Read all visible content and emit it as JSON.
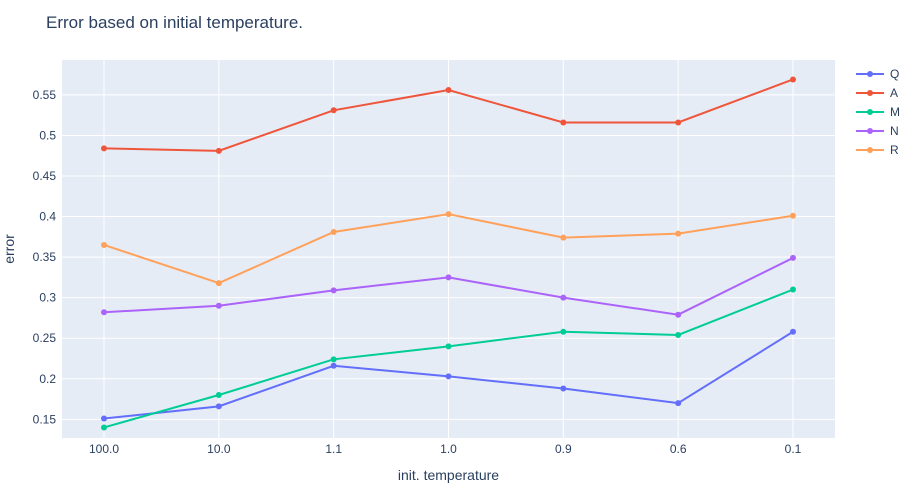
{
  "chart_data": {
    "type": "line",
    "title": "Error based on initial temperature.",
    "xlabel": "init. temperature",
    "ylabel": "error",
    "categories": [
      "100.0",
      "10.0",
      "1.1",
      "1.0",
      "0.9",
      "0.6",
      "0.1"
    ],
    "ylim": [
      0.127,
      0.593
    ],
    "yticks": [
      "0.15",
      "0.2",
      "0.25",
      "0.3",
      "0.35",
      "0.4",
      "0.45",
      "0.5",
      "0.55"
    ],
    "grid": true,
    "legend_position": "top-right",
    "series": [
      {
        "name": "Q",
        "color": "#636efa",
        "values": [
          0.151,
          0.166,
          0.216,
          0.203,
          0.188,
          0.17,
          0.258
        ]
      },
      {
        "name": "A",
        "color": "#ef553b",
        "values": [
          0.484,
          0.481,
          0.531,
          0.556,
          0.516,
          0.516,
          0.569
        ]
      },
      {
        "name": "M",
        "color": "#00cc96",
        "values": [
          0.14,
          0.18,
          0.224,
          0.24,
          0.258,
          0.254,
          0.31
        ]
      },
      {
        "name": "N",
        "color": "#ab63fa",
        "values": [
          0.282,
          0.29,
          0.309,
          0.325,
          0.3,
          0.279,
          0.349
        ]
      },
      {
        "name": "R",
        "color": "#ffa15a",
        "values": [
          0.365,
          0.318,
          0.381,
          0.403,
          0.374,
          0.379,
          0.401
        ]
      }
    ]
  }
}
